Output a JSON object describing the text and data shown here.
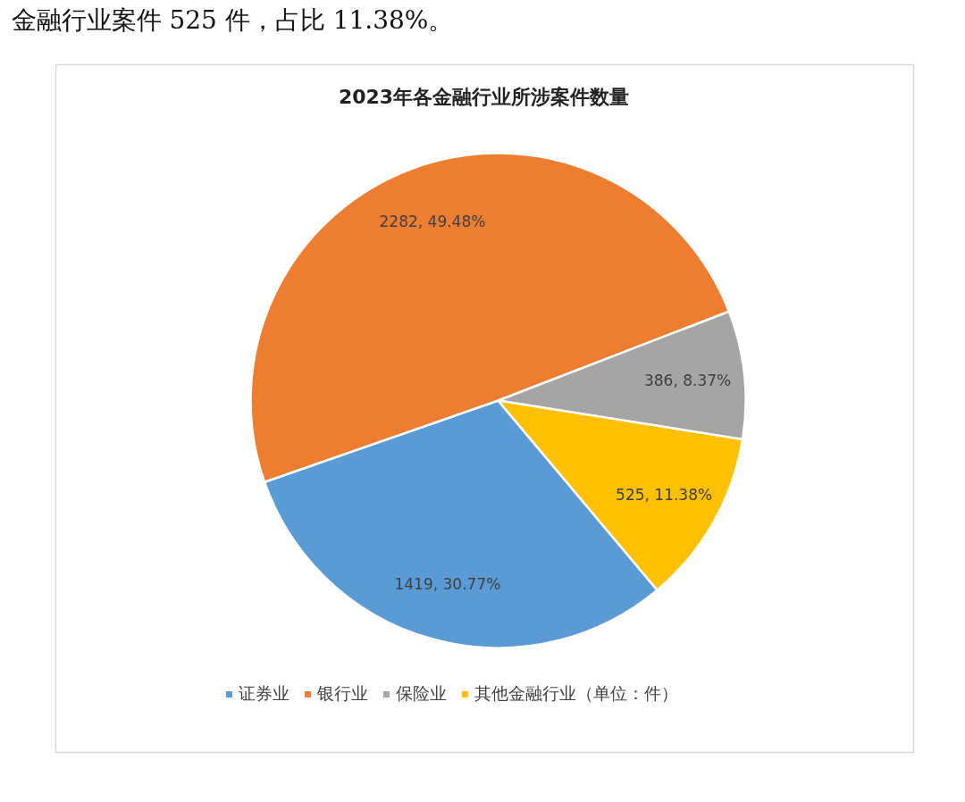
{
  "chart_data": {
    "type": "pie",
    "title": "2023年各金融行业所涉案件数量",
    "categories": [
      "证券业",
      "银行业",
      "保险业",
      "其他金融行业（单位：件）"
    ],
    "values": [
      1419,
      2282,
      386,
      525
    ],
    "colors": [
      "#5b9bd5",
      "#ed7d31",
      "#a5a5a5",
      "#ffc000"
    ],
    "value_labels": [
      "1419, 30.77%",
      "2282, 49.48%",
      "386, 8.37%",
      "525, 11.38%"
    ],
    "legend": "bottom",
    "annotations": [
      "金融行业案件 525 件，占比 11.38%。"
    ]
  }
}
